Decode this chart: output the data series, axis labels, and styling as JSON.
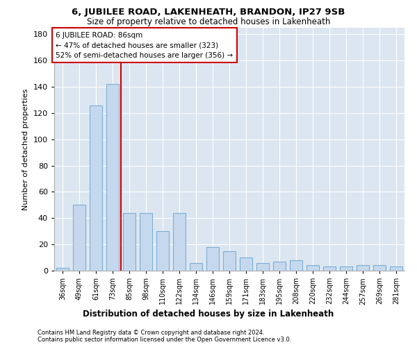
{
  "title": "6, JUBILEE ROAD, LAKENHEATH, BRANDON, IP27 9SB",
  "subtitle": "Size of property relative to detached houses in Lakenheath",
  "xlabel_bottom": "Distribution of detached houses by size in Lakenheath",
  "ylabel": "Number of detached properties",
  "categories": [
    "36sqm",
    "49sqm",
    "61sqm",
    "73sqm",
    "85sqm",
    "98sqm",
    "110sqm",
    "122sqm",
    "134sqm",
    "146sqm",
    "159sqm",
    "171sqm",
    "183sqm",
    "195sqm",
    "208sqm",
    "220sqm",
    "232sqm",
    "244sqm",
    "257sqm",
    "269sqm",
    "281sqm"
  ],
  "values": [
    2,
    50,
    126,
    142,
    44,
    44,
    30,
    44,
    6,
    18,
    15,
    10,
    6,
    7,
    8,
    4,
    3,
    3,
    4,
    4,
    3
  ],
  "bar_color": "#c5d8ee",
  "bar_edge_color": "#7bafd4",
  "bg_color": "#dce6f1",
  "property_line_x": 3.5,
  "annotation_text": "6 JUBILEE ROAD: 86sqm\n← 47% of detached houses are smaller (323)\n52% of semi-detached houses are larger (356) →",
  "annotation_box_edge_color": "#cc0000",
  "vline_color": "#cc0000",
  "footnote1": "Contains HM Land Registry data © Crown copyright and database right 2024.",
  "footnote2": "Contains public sector information licensed under the Open Government Licence v3.0.",
  "ylim": [
    0,
    185
  ],
  "yticks": [
    0,
    20,
    40,
    60,
    80,
    100,
    120,
    140,
    160,
    180
  ],
  "bar_width": 0.75
}
